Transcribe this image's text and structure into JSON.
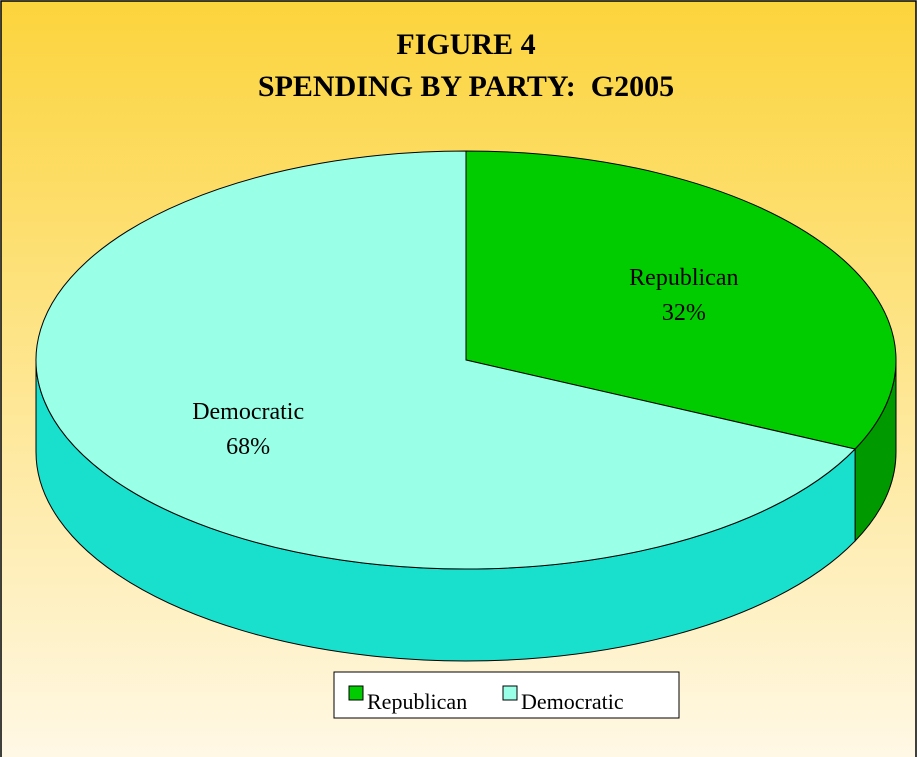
{
  "chart_data": {
    "type": "pie",
    "title": "FIGURE 4",
    "subtitle": "SPENDING BY PARTY:  G2005",
    "categories": [
      "Republican",
      "Democratic"
    ],
    "values": [
      32,
      68
    ],
    "value_labels": [
      "32%",
      "68%"
    ],
    "colors": [
      "#00cc00",
      "#99ffe6"
    ],
    "depth_colors": [
      "#009900",
      "#19e0cc"
    ],
    "legend": "bottom"
  }
}
